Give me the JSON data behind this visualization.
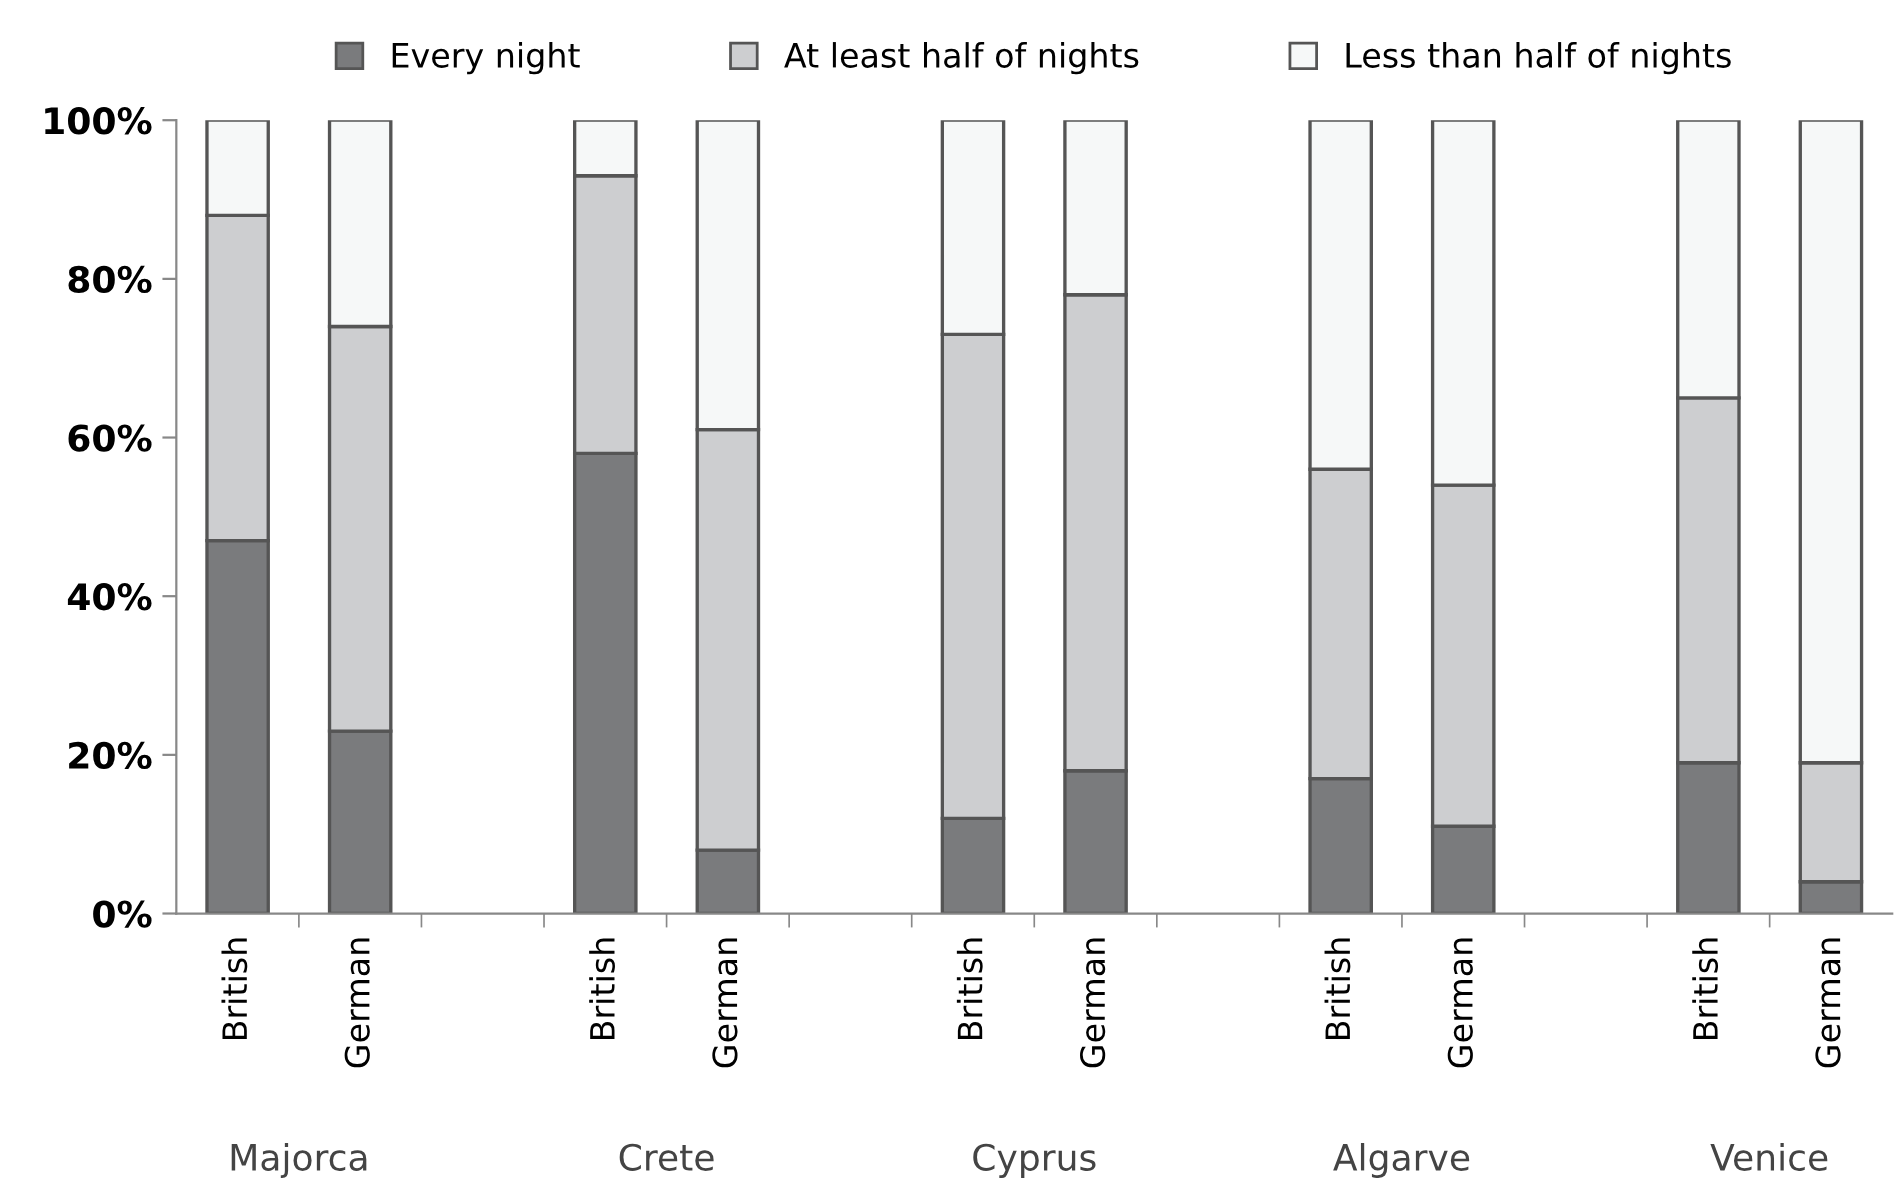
{
  "chart_data": {
    "type": "bar",
    "stacked": true,
    "categories": [
      "British",
      "German",
      null,
      "British",
      "German",
      null,
      "British",
      "German",
      null,
      "British",
      "German",
      null,
      "British",
      "German"
    ],
    "series": [
      {
        "name": "Every night",
        "color": "#7a7b7d",
        "values": [
          47,
          23,
          null,
          58,
          8,
          null,
          12,
          18,
          null,
          17,
          11,
          null,
          19,
          4
        ]
      },
      {
        "name": "At least half of nights",
        "color": "#cdced0",
        "values": [
          41,
          51,
          null,
          35,
          53,
          null,
          61,
          60,
          null,
          39,
          43,
          null,
          46,
          15
        ]
      },
      {
        "name": "Less than half of nights",
        "color": "#f6f8f8",
        "values": [
          12,
          26,
          null,
          7,
          39,
          null,
          27,
          22,
          null,
          44,
          46,
          null,
          35,
          81
        ]
      }
    ],
    "ylim": [
      0,
      100
    ],
    "yticks": [
      {
        "value": 0,
        "label": "0%"
      },
      {
        "value": 20,
        "label": "20%"
      },
      {
        "value": 40,
        "label": "40%"
      },
      {
        "value": 60,
        "label": "60%"
      },
      {
        "value": 80,
        "label": "80%"
      },
      {
        "value": 100,
        "label": "100%"
      }
    ],
    "grid": false,
    "legend": "top",
    "annotations": [
      "Majorca",
      "Crete",
      "Cyprus",
      "Algarve",
      "Venice"
    ]
  }
}
